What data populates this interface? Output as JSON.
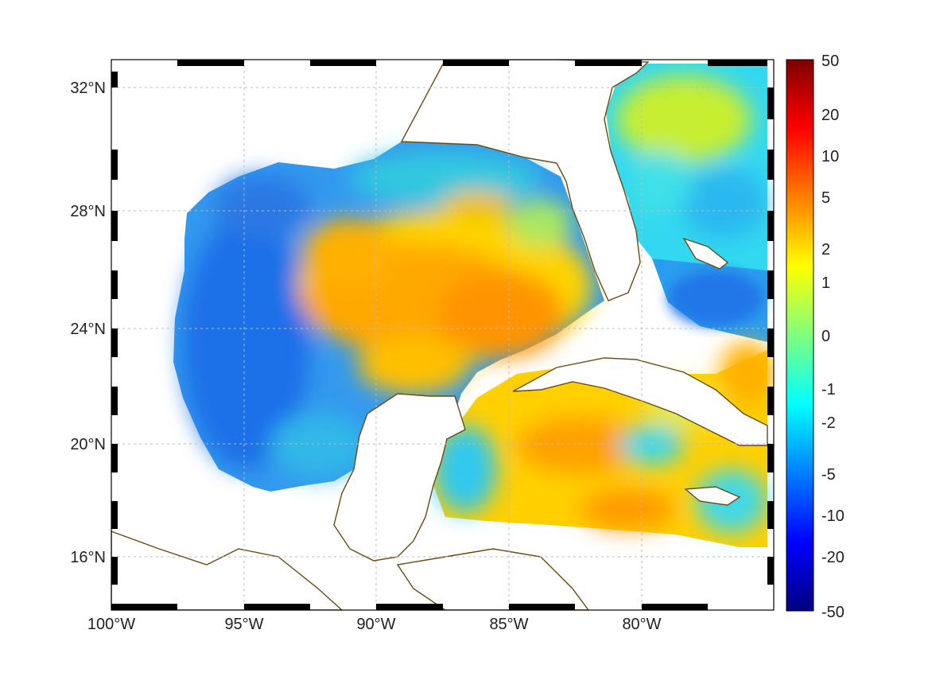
{
  "map": {
    "lat_labels": [
      "32°N",
      "28°N",
      "24°N",
      "20°N",
      "16°N"
    ],
    "lon_labels": [
      "100°W",
      "95°W",
      "90°W",
      "85°W",
      "80°W"
    ],
    "grid": true,
    "coastline_color": "#6b4a12",
    "land_color": "#ffffff"
  },
  "colorbar": {
    "ticks": [
      "50",
      "20",
      "10",
      "5",
      "2",
      "1",
      "0",
      "-1",
      "-2",
      "-5",
      "-10",
      "-20",
      "-50"
    ],
    "colormap": "jet",
    "colors": [
      "#00007f",
      "#0000ff",
      "#007fff",
      "#00ffff",
      "#7fff7f",
      "#ffff00",
      "#ff7f00",
      "#ff0000",
      "#7f0000"
    ]
  }
}
